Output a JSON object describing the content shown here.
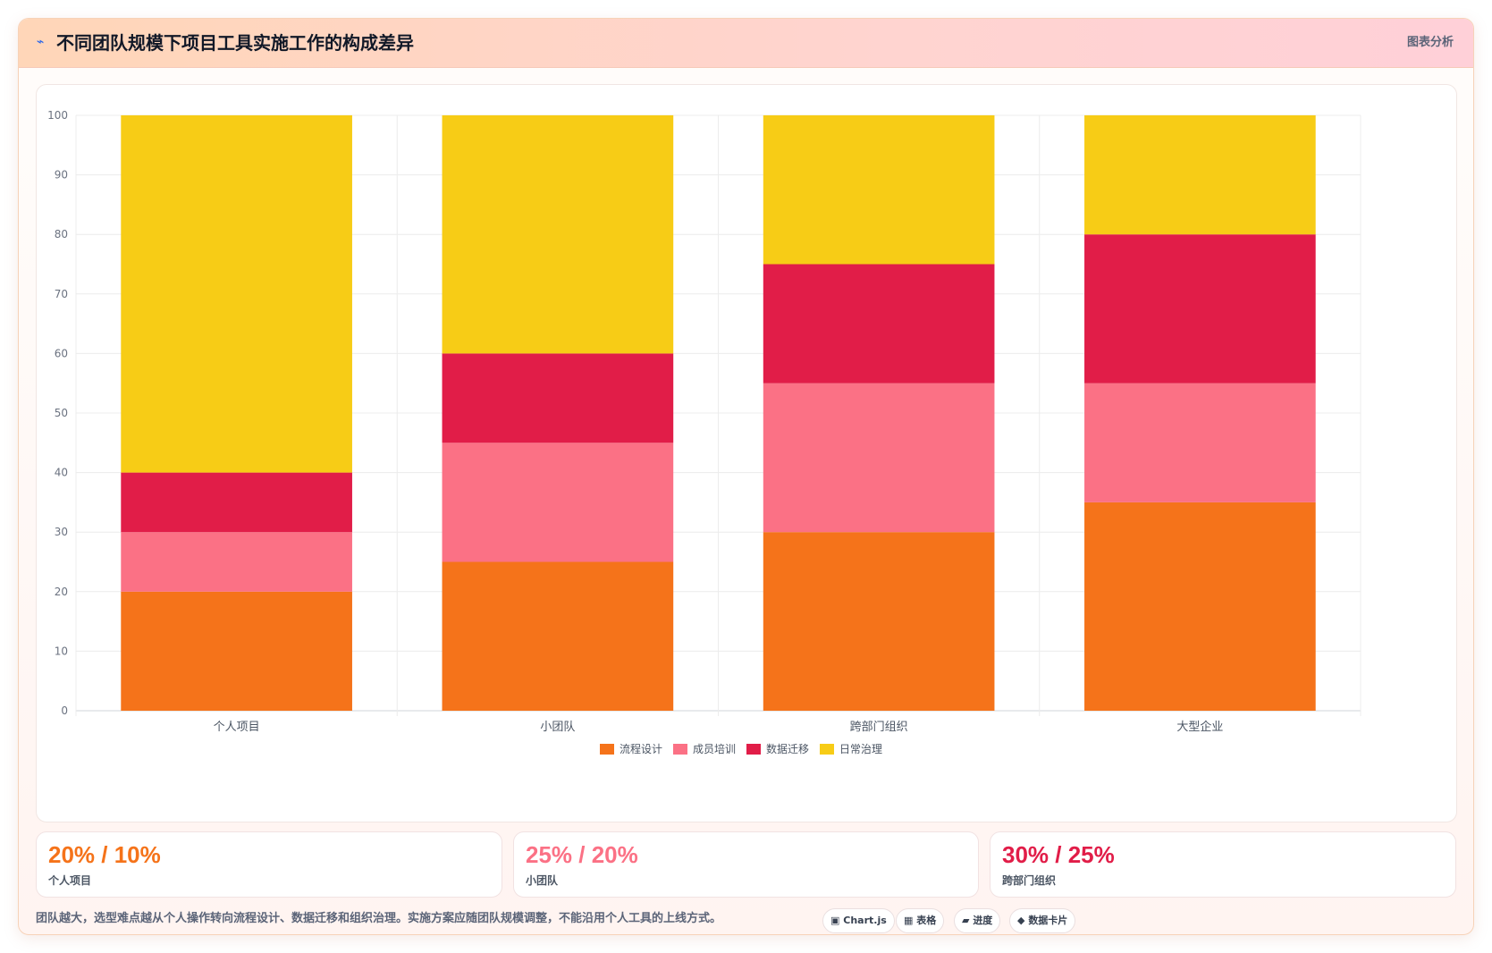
{
  "header": {
    "icon": "lightning-icon",
    "title": "不同团队规模下项目工具实施工作的构成差异",
    "analysis_label": "图表分析"
  },
  "chart_data": {
    "type": "bar",
    "stacked": true,
    "categories": [
      "个人项目",
      "小团队",
      "跨部门组织",
      "大型企业"
    ],
    "series": [
      {
        "name": "流程设计",
        "color": "#f5731a",
        "values": [
          20,
          25,
          30,
          35
        ]
      },
      {
        "name": "成员培训",
        "color": "#fb7185",
        "values": [
          10,
          20,
          25,
          20
        ]
      },
      {
        "name": "数据迁移",
        "color": "#e11d48",
        "values": [
          10,
          15,
          20,
          25
        ]
      },
      {
        "name": "日常治理",
        "color": "#f7cc16",
        "values": [
          60,
          40,
          25,
          20
        ]
      }
    ],
    "ylim": [
      0,
      100
    ],
    "yticks": [
      0,
      10,
      20,
      30,
      40,
      50,
      60,
      70,
      80,
      90,
      100
    ],
    "grid": true,
    "legend": "bottom"
  },
  "stats": [
    {
      "value": "20% / 10%",
      "label": "个人项目",
      "color": "#f5731a"
    },
    {
      "value": "25% / 20%",
      "label": "小团队",
      "color": "#fb7185"
    },
    {
      "value": "30% / 25%",
      "label": "跨部门组织",
      "color": "#e11d48"
    }
  ],
  "footer": {
    "note": "团队越大，选型难点越从个人操作转向流程设计、数据迁移和组织治理。实施方案应随团队规模调整，不能沿用个人工具的上线方式。",
    "chips": [
      {
        "icon": "▣",
        "label": "Chart.js"
      },
      {
        "icon": "▦",
        "label": "表格"
      },
      {
        "icon": "▰",
        "label": "进度"
      },
      {
        "icon": "◆",
        "label": "数据卡片"
      }
    ]
  }
}
